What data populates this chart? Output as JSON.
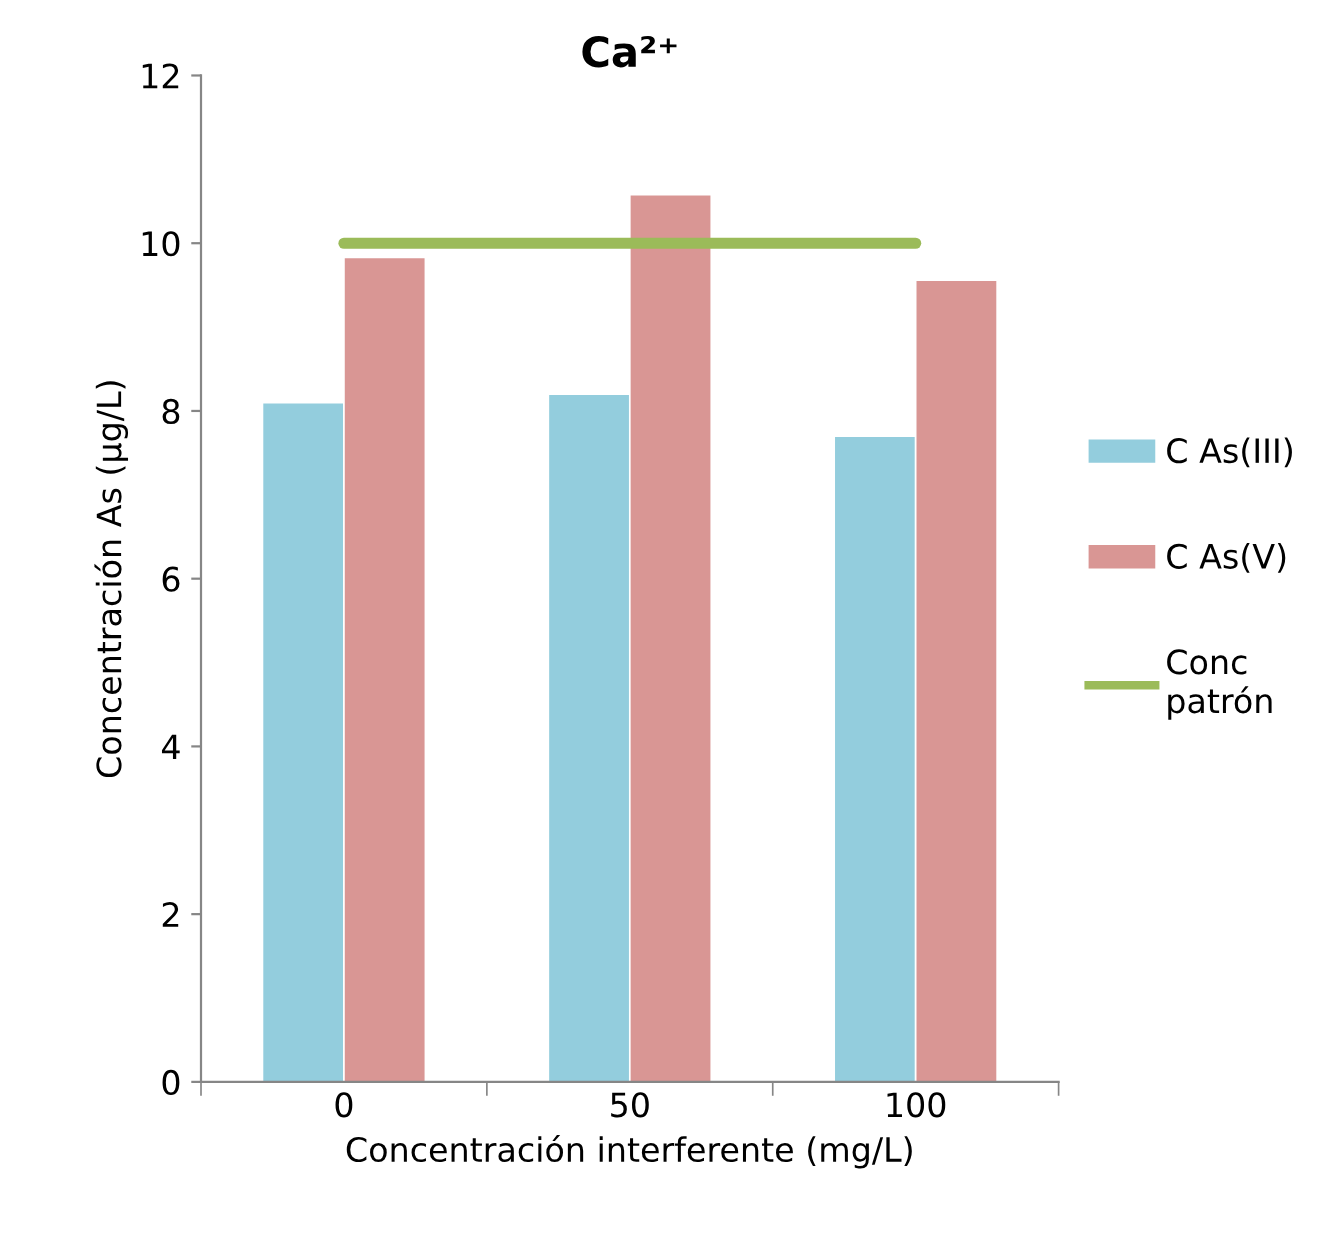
{
  "chart_data": {
    "type": "bar",
    "title": "Ca²⁺",
    "xlabel": "Concentración interferente (mg/L)",
    "ylabel": "Concentración As (µg/L)",
    "categories": [
      "0",
      "50",
      "100"
    ],
    "series": [
      {
        "name": "C As(III)",
        "color": "#93cddd",
        "values": [
          8.1,
          8.2,
          7.7
        ]
      },
      {
        "name": "C As(V)",
        "color": "#d99694",
        "values": [
          9.83,
          10.58,
          9.56
        ]
      },
      {
        "name": "Conc patrón",
        "type": "line",
        "color": "#9bbb59",
        "values": [
          10,
          10,
          10
        ]
      }
    ],
    "ylim": [
      0,
      12
    ],
    "yticks": [
      0,
      2,
      4,
      6,
      8,
      10,
      12
    ],
    "grid": false,
    "legend": "right"
  }
}
